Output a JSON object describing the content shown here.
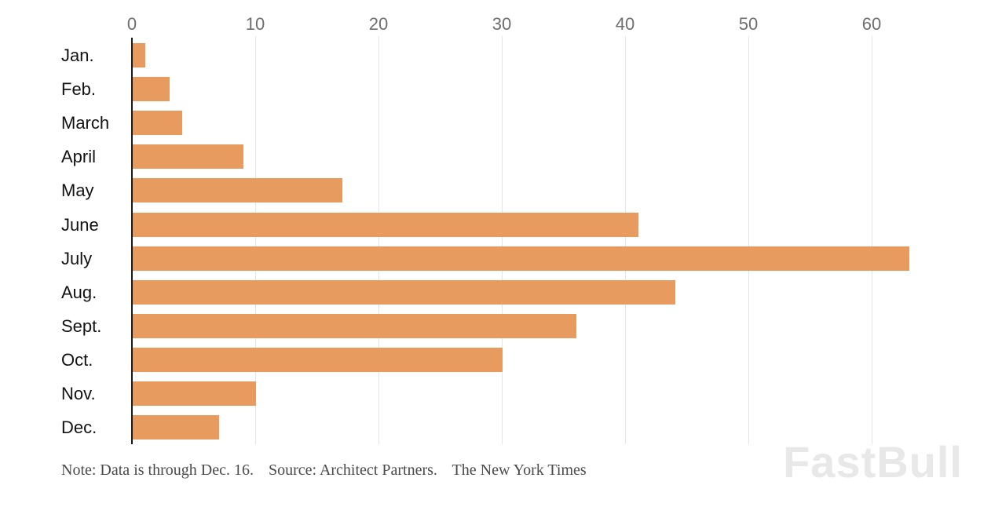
{
  "chart_data": {
    "type": "bar",
    "orientation": "horizontal",
    "title": "",
    "xlabel": "",
    "ylabel": "",
    "categories": [
      "Jan.",
      "Feb.",
      "March",
      "April",
      "May",
      "June",
      "July",
      "Aug.",
      "Sept.",
      "Oct.",
      "Nov.",
      "Dec."
    ],
    "values": [
      1,
      3,
      4,
      9,
      17,
      41,
      63,
      44,
      36,
      30,
      10,
      7
    ],
    "x_ticks": [
      0,
      10,
      20,
      30,
      40,
      50,
      60
    ],
    "xlim": [
      0,
      69.7
    ],
    "grid": true,
    "legend": "none",
    "bar_color": "#e89b5e"
  },
  "footer": {
    "note": "Note: Data is through Dec. 16.",
    "source": "Source: Architect Partners.",
    "credit": "The New York Times"
  },
  "watermark": "FastBull",
  "colors": {
    "bar": "#e89b5e",
    "axis": "#1a1a1a",
    "gridline": "#e4e4e4",
    "tick_text": "#6e6e6e",
    "label_text": "#121212",
    "note_text": "#4a4a4a",
    "background": "#ffffff"
  }
}
